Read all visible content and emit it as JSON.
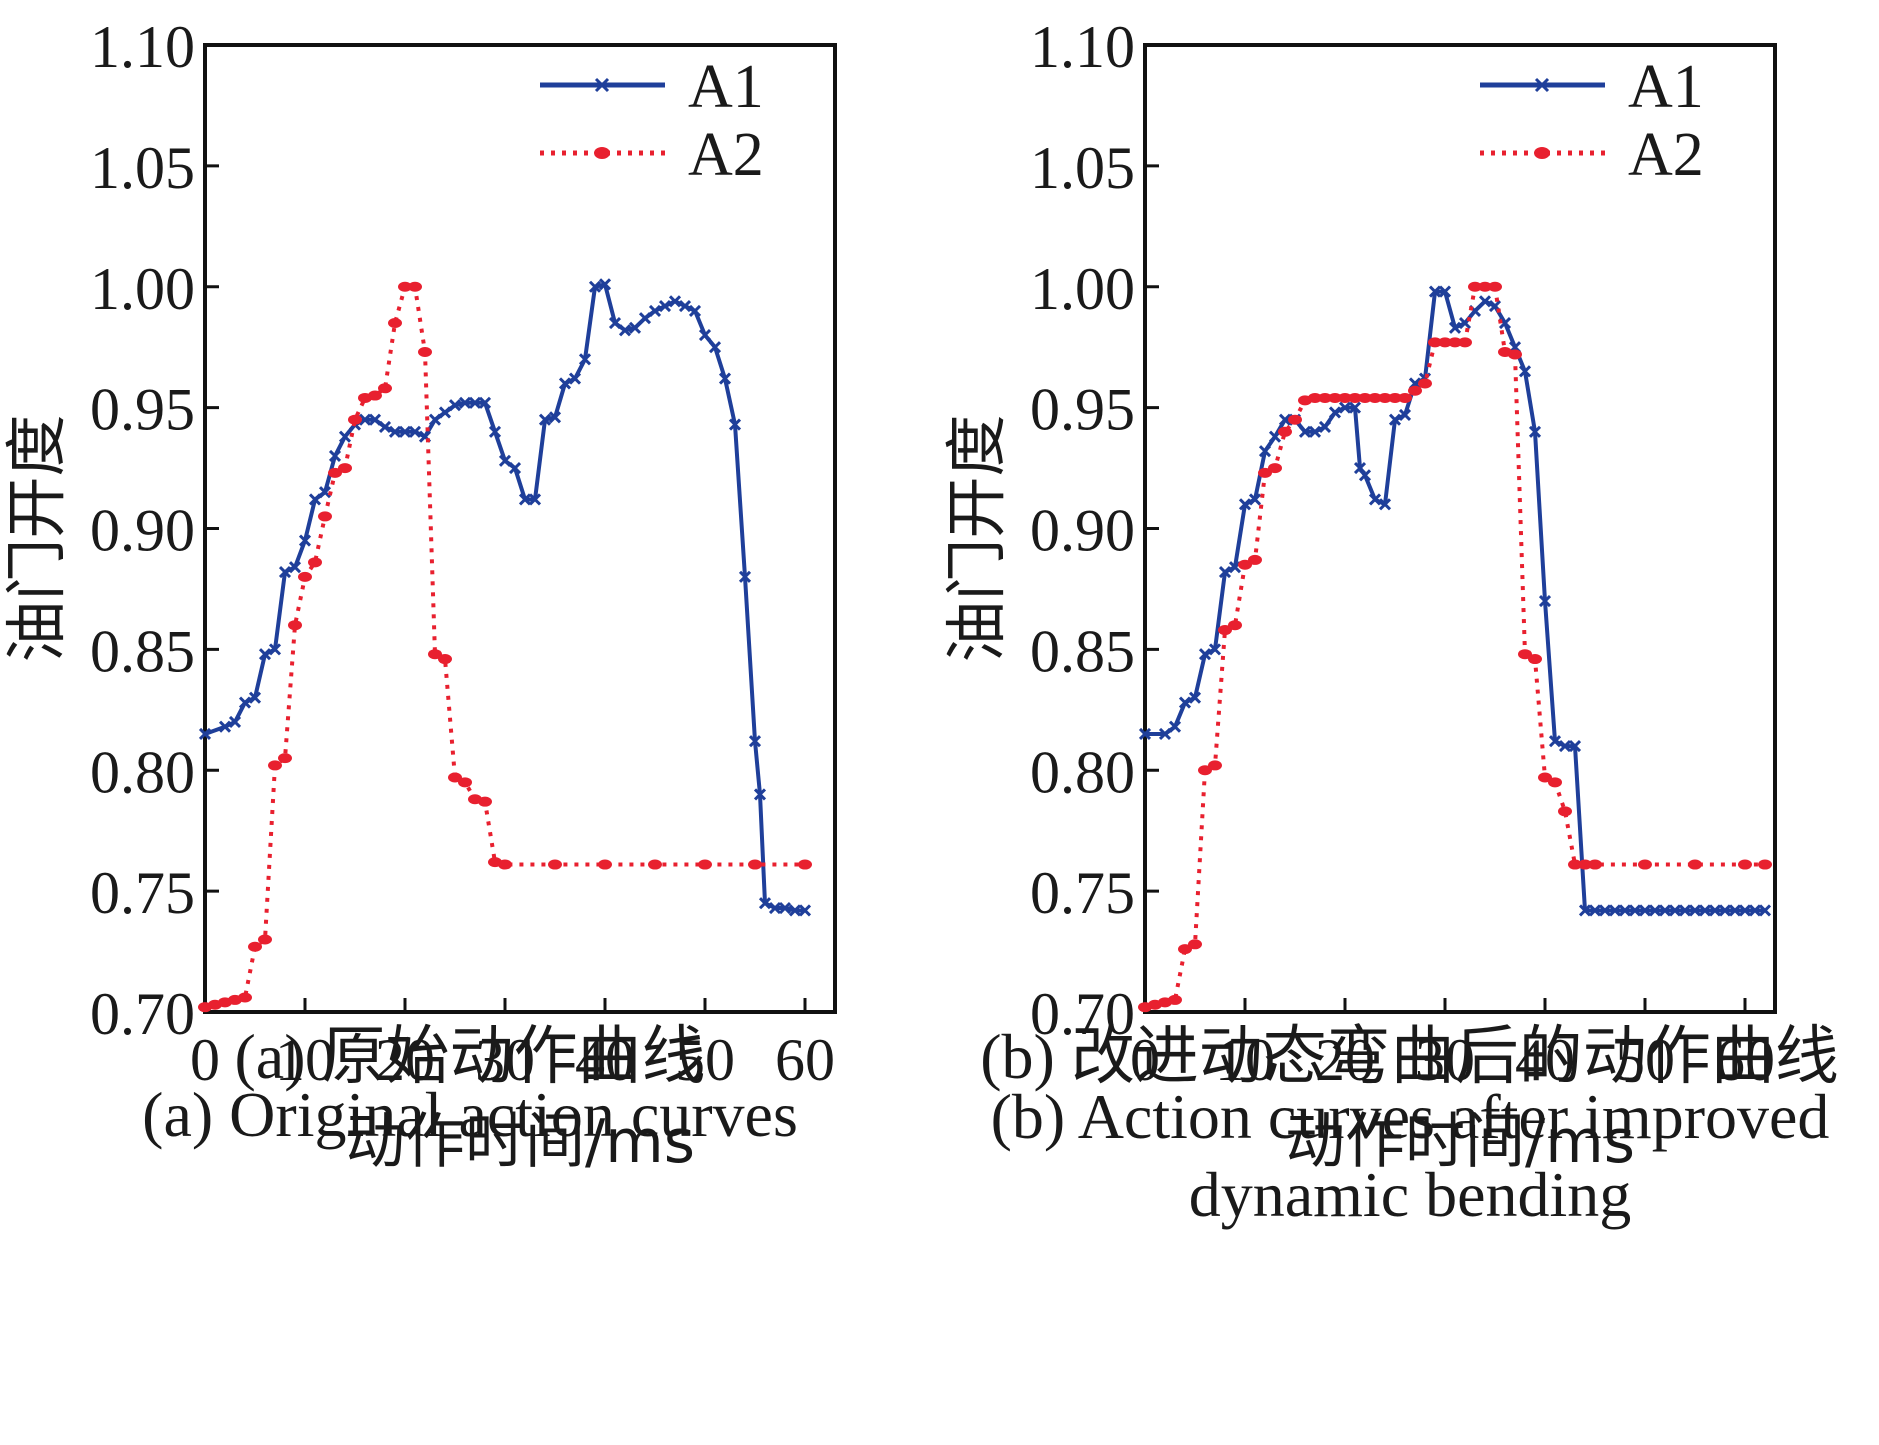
{
  "chart_data": [
    {
      "type": "line",
      "panel": "a",
      "ylabel": "油门开度",
      "xlabel": "动作时间/ms",
      "xlim": [
        0,
        63
      ],
      "ylim": [
        0.7,
        1.1
      ],
      "xticks": [
        0,
        10,
        20,
        30,
        40,
        50,
        60
      ],
      "xtick_labels": [
        "0",
        "10",
        "20",
        "30",
        "40",
        "50",
        "60"
      ],
      "yticks": [
        0.7,
        0.75,
        0.8,
        0.85,
        0.9,
        0.95,
        1.0,
        1.05,
        1.1
      ],
      "ytick_labels": [
        "0.70",
        "0.75",
        "0.80",
        "0.85",
        "0.90",
        "0.95",
        "1.00",
        "1.05",
        "1.10"
      ],
      "legend": "top-right",
      "caption_zh": "(a) 原始动作曲线",
      "caption_en": "(a) Original action curves",
      "series": [
        {
          "name": "A1",
          "color": "#1f3f9a",
          "style": "solid",
          "marker": "x",
          "x": [
            0,
            2,
            3,
            4,
            5,
            6,
            7,
            8,
            9,
            10,
            11,
            12,
            13,
            14,
            15,
            16,
            17,
            18,
            19,
            20,
            21,
            22,
            23,
            24,
            25,
            26,
            27,
            28,
            29,
            30,
            31,
            32,
            33,
            34,
            35,
            36,
            37,
            38,
            39,
            40,
            41,
            42,
            43,
            44,
            45,
            46,
            47,
            48,
            49,
            50,
            51,
            52,
            53,
            54,
            55,
            55.5,
            56,
            57,
            58,
            59,
            60
          ],
          "y": [
            0.815,
            0.818,
            0.82,
            0.828,
            0.83,
            0.848,
            0.85,
            0.882,
            0.884,
            0.895,
            0.912,
            0.915,
            0.93,
            0.938,
            0.943,
            0.945,
            0.945,
            0.942,
            0.94,
            0.94,
            0.94,
            0.938,
            0.945,
            0.948,
            0.951,
            0.952,
            0.952,
            0.952,
            0.94,
            0.928,
            0.925,
            0.912,
            0.912,
            0.945,
            0.946,
            0.96,
            0.962,
            0.97,
            1.0,
            1.001,
            0.985,
            0.982,
            0.983,
            0.987,
            0.99,
            0.992,
            0.994,
            0.992,
            0.99,
            0.98,
            0.975,
            0.962,
            0.943,
            0.88,
            0.812,
            0.79,
            0.745,
            0.743,
            0.743,
            0.742,
            0.742
          ]
        },
        {
          "name": "A2",
          "color": "#e8202f",
          "style": "dotted",
          "marker": "o",
          "x": [
            0,
            1,
            2,
            3,
            4,
            5,
            6,
            7,
            8,
            9,
            10,
            11,
            12,
            13,
            14,
            15,
            16,
            17,
            18,
            19,
            20,
            21,
            22,
            23,
            24,
            25,
            26,
            27,
            28,
            29,
            30,
            35,
            40,
            45,
            50,
            55,
            60
          ],
          "y": [
            0.702,
            0.703,
            0.704,
            0.705,
            0.706,
            0.727,
            0.73,
            0.802,
            0.805,
            0.86,
            0.88,
            0.886,
            0.905,
            0.923,
            0.925,
            0.945,
            0.954,
            0.955,
            0.958,
            0.985,
            1.0,
            1.0,
            0.973,
            0.848,
            0.846,
            0.797,
            0.795,
            0.788,
            0.787,
            0.762,
            0.761,
            0.761,
            0.761,
            0.761,
            0.761,
            0.761,
            0.761
          ]
        }
      ]
    },
    {
      "type": "line",
      "panel": "b",
      "ylabel": "油门开度",
      "xlabel": "动作时间/ms",
      "xlim": [
        0,
        63
      ],
      "ylim": [
        0.7,
        1.1
      ],
      "xticks": [
        0,
        10,
        20,
        30,
        40,
        50,
        60
      ],
      "xtick_labels": [
        "0",
        "10",
        "20",
        "30",
        "40",
        "50",
        "60"
      ],
      "yticks": [
        0.7,
        0.75,
        0.8,
        0.85,
        0.9,
        0.95,
        1.0,
        1.05,
        1.1
      ],
      "ytick_labels": [
        "0.70",
        "0.75",
        "0.80",
        "0.85",
        "0.90",
        "0.95",
        "1.00",
        "1.05",
        "1.10"
      ],
      "legend": "top-right",
      "caption_zh": "(b) 改进动态弯曲后的动作曲线",
      "caption_en": "(b) Action curves after improved dynamic bending",
      "series": [
        {
          "name": "A1",
          "color": "#1f3f9a",
          "style": "solid",
          "marker": "x",
          "x": [
            0,
            2,
            3,
            4,
            5,
            6,
            7,
            8,
            9,
            10,
            11,
            12,
            13,
            14,
            15,
            16,
            17,
            18,
            19,
            20,
            21,
            21.5,
            22,
            23,
            24,
            25,
            26,
            27,
            28,
            29,
            30,
            31,
            32,
            33,
            34,
            35,
            36,
            37,
            38,
            39,
            40,
            41,
            42,
            43,
            44,
            45,
            46,
            47,
            48,
            49,
            50,
            51,
            52,
            53,
            54,
            55,
            56,
            57,
            58,
            59,
            60,
            61,
            62
          ],
          "y": [
            0.815,
            0.815,
            0.818,
            0.828,
            0.83,
            0.848,
            0.85,
            0.882,
            0.884,
            0.91,
            0.912,
            0.932,
            0.938,
            0.945,
            0.945,
            0.94,
            0.94,
            0.942,
            0.948,
            0.95,
            0.95,
            0.925,
            0.922,
            0.912,
            0.91,
            0.945,
            0.947,
            0.96,
            0.962,
            0.998,
            0.998,
            0.983,
            0.985,
            0.99,
            0.994,
            0.992,
            0.985,
            0.975,
            0.965,
            0.94,
            0.87,
            0.812,
            0.81,
            0.81,
            0.742,
            0.742,
            0.742,
            0.742,
            0.742,
            0.742,
            0.742,
            0.742,
            0.742,
            0.742,
            0.742,
            0.742,
            0.742,
            0.742,
            0.742,
            0.742,
            0.742,
            0.742,
            0.742
          ]
        },
        {
          "name": "A2",
          "color": "#e8202f",
          "style": "dotted",
          "marker": "o",
          "x": [
            0,
            1,
            2,
            3,
            4,
            5,
            6,
            7,
            8,
            9,
            10,
            11,
            12,
            13,
            14,
            15,
            16,
            17,
            18,
            19,
            20,
            21,
            22,
            23,
            24,
            25,
            26,
            27,
            28,
            29,
            30,
            31,
            32,
            33,
            34,
            35,
            36,
            37,
            38,
            39,
            40,
            41,
            42,
            43,
            44,
            45,
            50,
            55,
            60,
            62
          ],
          "y": [
            0.702,
            0.703,
            0.704,
            0.705,
            0.726,
            0.728,
            0.8,
            0.802,
            0.858,
            0.86,
            0.885,
            0.887,
            0.923,
            0.925,
            0.94,
            0.945,
            0.953,
            0.954,
            0.954,
            0.954,
            0.954,
            0.954,
            0.954,
            0.954,
            0.954,
            0.954,
            0.954,
            0.957,
            0.96,
            0.977,
            0.977,
            0.977,
            0.977,
            1.0,
            1.0,
            1.0,
            0.973,
            0.972,
            0.848,
            0.846,
            0.797,
            0.795,
            0.783,
            0.761,
            0.761,
            0.761,
            0.761,
            0.761,
            0.761,
            0.761
          ]
        }
      ]
    }
  ]
}
